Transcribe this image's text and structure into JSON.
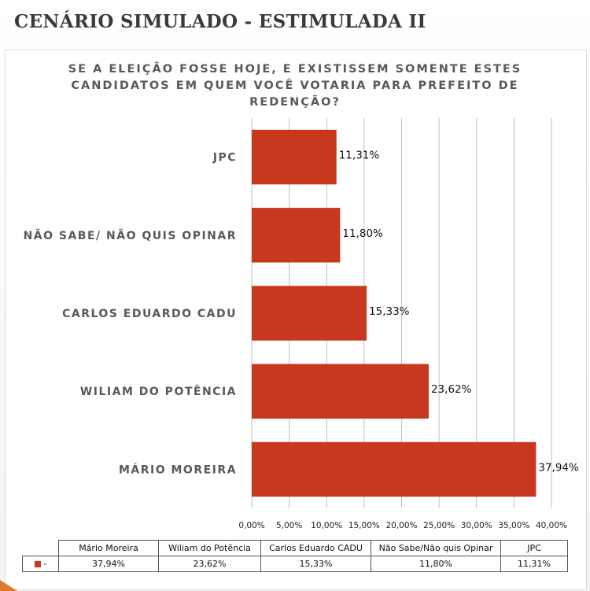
{
  "slide": {
    "title": "CENÁRIO SIMULADO - ESTIMULADA II"
  },
  "chart_data": {
    "type": "bar",
    "orientation": "horizontal",
    "title": "SE A ELEIÇÃO FOSSE HOJE, E EXISTISSEM SOMENTE ESTES CANDIDATOS EM QUEM VOCÊ VOTARIA PARA PREFEITO DE REDENÇÃO?",
    "categories": [
      "JPC",
      "NÃO SABE/ NÃO QUIS OPINAR",
      "CARLOS EDUARDO CADU",
      "WILIAM DO POTÊNCIA",
      "MÁRIO MOREIRA"
    ],
    "values": [
      11.31,
      11.8,
      15.33,
      23.62,
      37.94
    ],
    "data_labels": [
      "11,31%",
      "11,80%",
      "15,33%",
      "23,62%",
      "37,94%"
    ],
    "xlim": [
      0,
      40
    ],
    "x_ticks": [
      "0,00%",
      "5,00%",
      "10,00%",
      "15,00%",
      "20,00%",
      "25,00%",
      "30,00%",
      "35,00%",
      "40,00%"
    ],
    "grid": "vertical",
    "bar_color": "#c8381f"
  },
  "data_table": {
    "headers": [
      "Mário Moreira",
      "Wiliam do Potência",
      "Carlos Eduardo CADU",
      "Não Sabe/Não quis Opinar",
      "JPC"
    ],
    "row_label": "-",
    "values": [
      "37,94%",
      "23,62%",
      "15,33%",
      "11,80%",
      "11,31%"
    ]
  }
}
